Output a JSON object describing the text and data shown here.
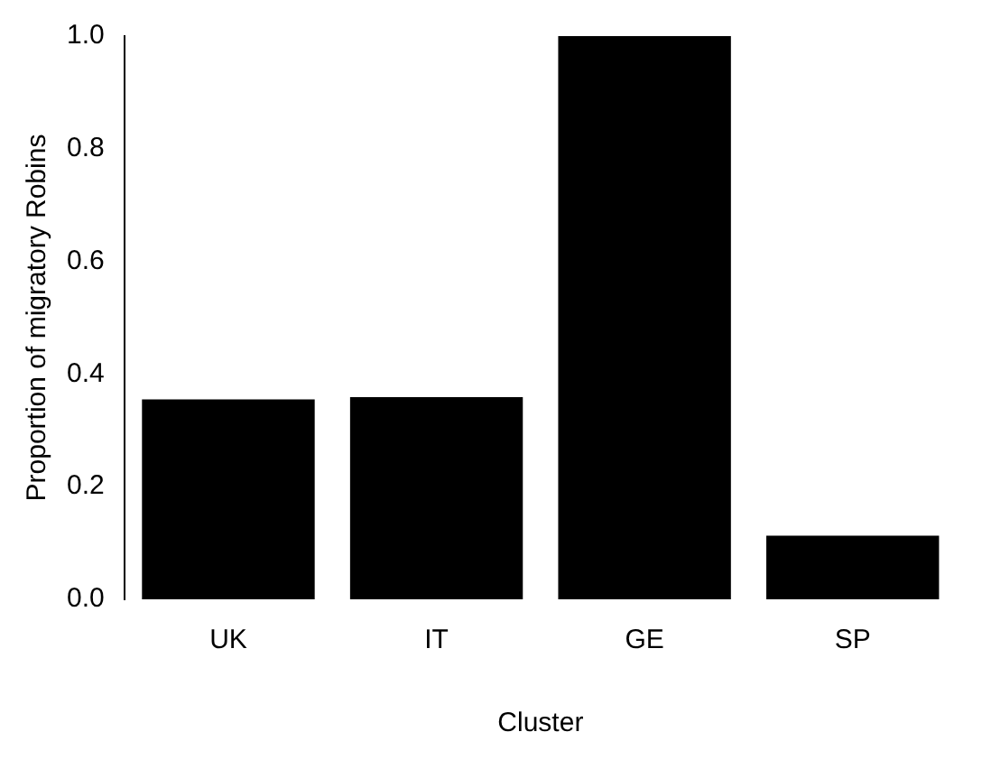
{
  "chart_data": {
    "type": "bar",
    "xlabel": "Cluster",
    "ylabel": "Proportion of migratory Robins",
    "categories": [
      "UK",
      "IT",
      "GE",
      "SP"
    ],
    "values": [
      0.355,
      0.359,
      1.0,
      0.113
    ],
    "color": "#000000",
    "ylim": [
      0,
      1
    ],
    "yticks": [
      {
        "value": 0,
        "label": "0.0"
      },
      {
        "value": 0.2,
        "label": "0.2"
      },
      {
        "value": 0.4,
        "label": "0.4"
      },
      {
        "value": 0.6,
        "label": "0.6"
      },
      {
        "value": 0.8,
        "label": "0.8"
      },
      {
        "value": 1,
        "label": "1.0"
      }
    ],
    "grid": false,
    "legend": false
  }
}
